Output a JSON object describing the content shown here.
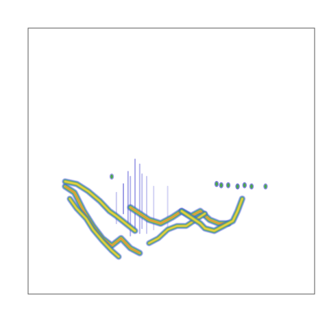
{
  "chart_data": {
    "type": "heatmap",
    "title": "",
    "xlabel": "",
    "ylabel": "",
    "grid": false,
    "legend": "none",
    "colors": {
      "low": "#2828c8",
      "midlow": "#4a8fd0",
      "mid": "#4aa84a",
      "midhigh": "#e8d040",
      "high": "#e05030",
      "frame": "#555555"
    },
    "traces": [
      {
        "name_id": "trace-1",
        "points": [
          [
            0.0,
            0.6
          ],
          [
            0.04,
            0.55
          ],
          [
            0.08,
            0.4
          ],
          [
            0.12,
            0.28
          ],
          [
            0.16,
            0.18
          ],
          [
            0.2,
            0.12
          ],
          [
            0.24,
            0.18
          ],
          [
            0.28,
            0.1
          ],
          [
            0.32,
            0.06
          ]
        ],
        "intensity": 0.8
      },
      {
        "name_id": "trace-2",
        "points": [
          [
            0.02,
            0.5
          ],
          [
            0.05,
            0.42
          ],
          [
            0.09,
            0.34
          ],
          [
            0.12,
            0.25
          ],
          [
            0.16,
            0.16
          ],
          [
            0.2,
            0.08
          ],
          [
            0.23,
            0.03
          ]
        ],
        "intensity": 0.6
      },
      {
        "name_id": "trace-3",
        "points": [
          [
            0.0,
            0.64
          ],
          [
            0.05,
            0.62
          ],
          [
            0.1,
            0.56
          ],
          [
            0.15,
            0.48
          ],
          [
            0.19,
            0.4
          ],
          [
            0.22,
            0.36
          ],
          [
            0.26,
            0.3
          ],
          [
            0.3,
            0.24
          ]
        ],
        "intensity": 0.7
      },
      {
        "name_id": "trace-4",
        "points": [
          [
            0.28,
            0.43
          ],
          [
            0.32,
            0.38
          ],
          [
            0.36,
            0.33
          ],
          [
            0.41,
            0.3
          ],
          [
            0.46,
            0.35
          ],
          [
            0.5,
            0.4
          ],
          [
            0.54,
            0.36
          ],
          [
            0.58,
            0.4
          ],
          [
            0.62,
            0.33
          ],
          [
            0.66,
            0.3
          ],
          [
            0.7,
            0.3
          ]
        ],
        "intensity": 0.85
      },
      {
        "name_id": "trace-5",
        "points": [
          [
            0.36,
            0.14
          ],
          [
            0.4,
            0.18
          ],
          [
            0.44,
            0.25
          ],
          [
            0.48,
            0.28
          ],
          [
            0.52,
            0.28
          ],
          [
            0.56,
            0.33
          ],
          [
            0.6,
            0.38
          ]
        ],
        "intensity": 0.55
      },
      {
        "name_id": "trace-6",
        "points": [
          [
            0.5,
            0.4
          ],
          [
            0.54,
            0.35
          ],
          [
            0.58,
            0.3
          ],
          [
            0.6,
            0.26
          ],
          [
            0.64,
            0.24
          ],
          [
            0.68,
            0.28
          ],
          [
            0.72,
            0.32
          ],
          [
            0.74,
            0.4
          ],
          [
            0.76,
            0.5
          ]
        ],
        "intensity": 0.75
      }
    ],
    "streaks": [
      {
        "x": 0.25,
        "y0": 0.38,
        "y1": 0.62,
        "intensity": 0.45
      },
      {
        "x": 0.27,
        "y0": 0.3,
        "y1": 0.72,
        "intensity": 0.4
      },
      {
        "x": 0.28,
        "y0": 0.2,
        "y1": 0.68,
        "intensity": 0.35
      },
      {
        "x": 0.3,
        "y0": 0.24,
        "y1": 0.82,
        "intensity": 0.4
      },
      {
        "x": 0.32,
        "y0": 0.22,
        "y1": 0.78,
        "intensity": 0.35
      },
      {
        "x": 0.33,
        "y0": 0.26,
        "y1": 0.7,
        "intensity": 0.3
      },
      {
        "x": 0.35,
        "y0": 0.22,
        "y1": 0.68,
        "intensity": 0.25
      },
      {
        "x": 0.38,
        "y0": 0.25,
        "y1": 0.6,
        "intensity": 0.2
      },
      {
        "x": 0.44,
        "y0": 0.25,
        "y1": 0.6,
        "intensity": 0.2
      },
      {
        "x": 0.22,
        "y0": 0.3,
        "y1": 0.55,
        "intensity": 0.25
      }
    ],
    "dots": [
      {
        "x": 0.65,
        "y": 0.62,
        "intensity": 0.55
      },
      {
        "x": 0.67,
        "y": 0.61,
        "intensity": 0.55
      },
      {
        "x": 0.7,
        "y": 0.61,
        "intensity": 0.5
      },
      {
        "x": 0.74,
        "y": 0.6,
        "intensity": 0.6
      },
      {
        "x": 0.77,
        "y": 0.61,
        "intensity": 0.55
      },
      {
        "x": 0.8,
        "y": 0.6,
        "intensity": 0.5
      },
      {
        "x": 0.86,
        "y": 0.6,
        "intensity": 0.45
      },
      {
        "x": 0.2,
        "y": 0.68,
        "intensity": 0.35
      }
    ]
  }
}
